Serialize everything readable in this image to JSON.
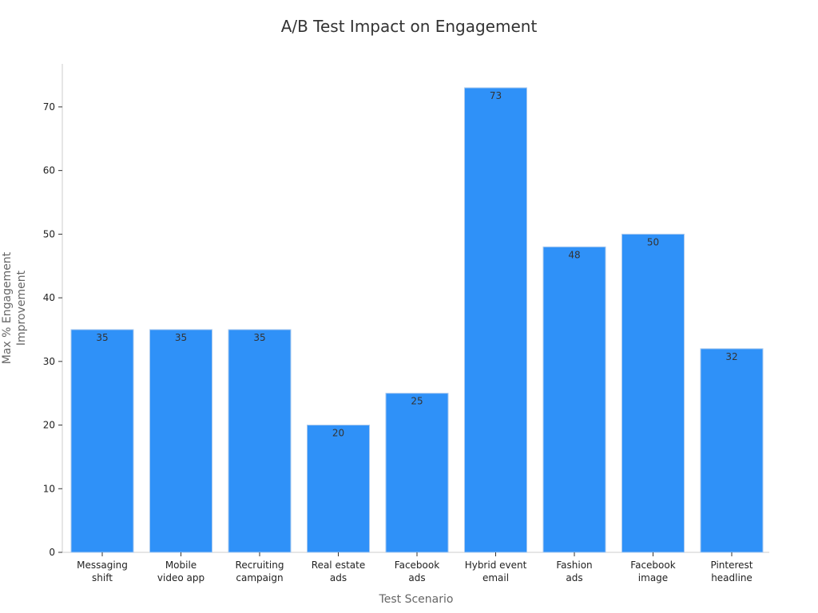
{
  "chart_data": {
    "type": "bar",
    "title": "A/B Test Impact on Engagement",
    "xlabel": "Test Scenario",
    "ylabel_lines": [
      "Max % Engagement",
      "Improvement"
    ],
    "categories": [
      [
        "Messaging",
        "shift"
      ],
      [
        "Mobile",
        "video app"
      ],
      [
        "Recruiting",
        "campaign"
      ],
      [
        "Real estate",
        "ads"
      ],
      [
        "Facebook",
        "ads"
      ],
      [
        "Hybrid event",
        "email"
      ],
      [
        "Fashion",
        "ads"
      ],
      [
        "Facebook",
        "image"
      ],
      [
        "Pinterest",
        "headline"
      ]
    ],
    "values": [
      35,
      35,
      35,
      20,
      25,
      73,
      48,
      50,
      32
    ],
    "ylim": [
      0,
      73
    ],
    "yticks": [
      0,
      10,
      20,
      30,
      40,
      50,
      60,
      70
    ],
    "grid": false,
    "bar_color": "#2f91f8"
  }
}
